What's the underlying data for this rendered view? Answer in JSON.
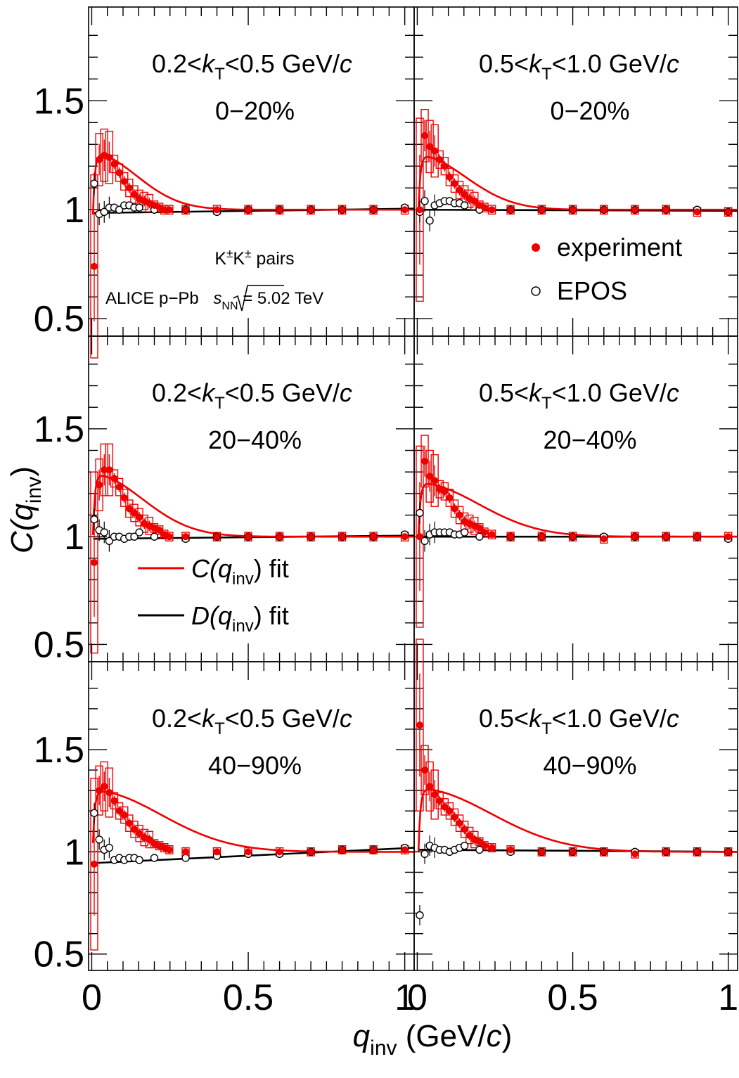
{
  "axes": {
    "y_title_main": "C(q",
    "y_title_sub": "inv",
    "y_title_close": ")",
    "x_title_q": "q",
    "x_title_sub": "inv",
    "x_title_rest": " (GeV/",
    "x_title_c": "c",
    "x_title_close": ")",
    "x_tick_labels": [
      "0",
      "0.5",
      "1"
    ],
    "y_tick_labels": [
      "0.5",
      "1",
      "1.5"
    ]
  },
  "annotations": {
    "pairs": "K±K± pairs",
    "pairs_base": "K",
    "pairs_sup": "±",
    "pairs_tail": " pairs",
    "alice_prefix": "ALICE p−Pb ",
    "alice_s": "s",
    "alice_sub": "NN",
    "alice_suffix": " = 5.02 TeV"
  },
  "legend": {
    "experiment": "experiment",
    "epos": "EPOS",
    "c_fit_pre": "C(q",
    "c_fit_sub": "inv",
    "c_fit_post": ") fit",
    "d_fit_pre": "D(q",
    "d_fit_sub": "inv",
    "d_fit_post": ") fit"
  },
  "colors": {
    "experiment": "#ee0000",
    "epos": "#000000",
    "c_fit": "#ee0000",
    "d_fit": "#000000"
  },
  "chart_data": {
    "type": "scatter",
    "layout": "3 rows x 2 columns, shared axes",
    "xlim": [
      -0.01,
      1.03
    ],
    "ylim": [
      0.42,
      1.93
    ],
    "x_ticks": [
      0,
      0.5,
      1
    ],
    "y_ticks": [
      0.5,
      1,
      1.5
    ],
    "panels": [
      {
        "kt_label": {
          "pre": "0.2<",
          "k": "k",
          "sub": "T",
          "post": "<0.5 GeV/",
          "c": "c"
        },
        "centrality": "0−20%",
        "experiment": [
          [
            0.008,
            0.74
          ],
          [
            0.024,
            1.23
          ],
          [
            0.04,
            1.25
          ],
          [
            0.056,
            1.24
          ],
          [
            0.072,
            1.21
          ],
          [
            0.088,
            1.17
          ],
          [
            0.104,
            1.13
          ],
          [
            0.12,
            1.1
          ],
          [
            0.136,
            1.07
          ],
          [
            0.152,
            1.05
          ],
          [
            0.168,
            1.04
          ],
          [
            0.184,
            1.03
          ],
          [
            0.2,
            1.02
          ],
          [
            0.216,
            1.01
          ],
          [
            0.232,
            1.0
          ],
          [
            0.248,
            1.0
          ],
          [
            0.3,
            1.0
          ],
          [
            0.4,
            1.0
          ],
          [
            0.5,
            1.0
          ],
          [
            0.6,
            1.0
          ],
          [
            0.7,
            1.0
          ],
          [
            0.8,
            1.0
          ],
          [
            0.9,
            1.0
          ],
          [
            1.0,
            1.0
          ]
        ],
        "epos": [
          [
            0.008,
            1.12
          ],
          [
            0.024,
            0.98
          ],
          [
            0.04,
            0.99
          ],
          [
            0.056,
            1.01
          ],
          [
            0.072,
            1.01
          ],
          [
            0.088,
            1.0
          ],
          [
            0.104,
            1.02
          ],
          [
            0.12,
            1.02
          ],
          [
            0.136,
            1.01
          ],
          [
            0.152,
            1.01
          ],
          [
            0.2,
            1.0
          ],
          [
            0.3,
            1.0
          ],
          [
            0.4,
            0.99
          ],
          [
            0.5,
            1.0
          ],
          [
            0.6,
            1.0
          ],
          [
            0.7,
            1.0
          ],
          [
            0.8,
            1.0
          ],
          [
            0.9,
            1.0
          ],
          [
            1.0,
            1.01
          ]
        ],
        "c_fit_lambda": 0.26,
        "c_fit_r": 5.0,
        "c_fit_fsi": 0.55,
        "d_fit": [
          0.985,
          1.005
        ]
      },
      {
        "kt_label": {
          "pre": "0.5<",
          "k": "k",
          "sub": "T",
          "post": "<1.0 GeV/",
          "c": "c"
        },
        "centrality": "0−20%",
        "experiment": [
          [
            0.008,
            1.0
          ],
          [
            0.024,
            1.34
          ],
          [
            0.04,
            1.29
          ],
          [
            0.056,
            1.27
          ],
          [
            0.072,
            1.23
          ],
          [
            0.088,
            1.2
          ],
          [
            0.104,
            1.15
          ],
          [
            0.12,
            1.12
          ],
          [
            0.136,
            1.09
          ],
          [
            0.152,
            1.07
          ],
          [
            0.168,
            1.05
          ],
          [
            0.184,
            1.04
          ],
          [
            0.2,
            1.02
          ],
          [
            0.216,
            1.01
          ],
          [
            0.24,
            1.0
          ],
          [
            0.3,
            1.0
          ],
          [
            0.4,
            1.0
          ],
          [
            0.5,
            1.0
          ],
          [
            0.6,
            1.0
          ],
          [
            0.7,
            1.0
          ],
          [
            0.8,
            1.0
          ],
          [
            0.9,
            0.99
          ],
          [
            1.0,
            0.99
          ]
        ],
        "epos": [
          [
            0.008,
            0.99
          ],
          [
            0.024,
            1.04
          ],
          [
            0.04,
            0.95
          ],
          [
            0.056,
            1.02
          ],
          [
            0.072,
            1.03
          ],
          [
            0.088,
            1.04
          ],
          [
            0.104,
            1.04
          ],
          [
            0.12,
            1.03
          ],
          [
            0.136,
            1.03
          ],
          [
            0.152,
            1.02
          ],
          [
            0.2,
            1.0
          ],
          [
            0.3,
            1.0
          ],
          [
            0.4,
            1.0
          ],
          [
            0.5,
            1.0
          ],
          [
            0.6,
            1.0
          ],
          [
            0.7,
            1.0
          ],
          [
            0.8,
            1.0
          ],
          [
            0.9,
            1.0
          ],
          [
            1.0,
            0.99
          ]
        ],
        "c_fit_lambda": 0.25,
        "c_fit_r": 4.6,
        "c_fit_fsi": 0.5,
        "d_fit": [
          1.0,
          0.995
        ]
      },
      {
        "kt_label": {
          "pre": "0.2<",
          "k": "k",
          "sub": "T",
          "post": "<0.5 GeV/",
          "c": "c"
        },
        "centrality": "20−40%",
        "experiment": [
          [
            0.008,
            0.88
          ],
          [
            0.024,
            1.24
          ],
          [
            0.04,
            1.31
          ],
          [
            0.056,
            1.31
          ],
          [
            0.072,
            1.27
          ],
          [
            0.088,
            1.23
          ],
          [
            0.104,
            1.18
          ],
          [
            0.12,
            1.13
          ],
          [
            0.136,
            1.11
          ],
          [
            0.152,
            1.09
          ],
          [
            0.168,
            1.06
          ],
          [
            0.184,
            1.05
          ],
          [
            0.2,
            1.04
          ],
          [
            0.216,
            1.03
          ],
          [
            0.232,
            1.01
          ],
          [
            0.248,
            1.0
          ],
          [
            0.3,
            1.0
          ],
          [
            0.4,
            1.0
          ],
          [
            0.5,
            1.0
          ],
          [
            0.6,
            1.0
          ],
          [
            0.7,
            1.0
          ],
          [
            0.8,
            1.0
          ],
          [
            0.9,
            1.0
          ],
          [
            1.0,
            1.0
          ]
        ],
        "epos": [
          [
            0.008,
            1.08
          ],
          [
            0.024,
            1.03
          ],
          [
            0.04,
            1.02
          ],
          [
            0.056,
            0.98
          ],
          [
            0.072,
            1.0
          ],
          [
            0.088,
            1.0
          ],
          [
            0.104,
            0.99
          ],
          [
            0.12,
            1.0
          ],
          [
            0.136,
            1.0
          ],
          [
            0.152,
            1.02
          ],
          [
            0.2,
            1.0
          ],
          [
            0.3,
            0.99
          ],
          [
            0.4,
            1.0
          ],
          [
            0.5,
            1.0
          ],
          [
            0.6,
            1.0
          ],
          [
            0.7,
            1.0
          ],
          [
            0.8,
            1.0
          ],
          [
            0.9,
            1.0
          ],
          [
            1.0,
            1.01
          ]
        ],
        "c_fit_lambda": 0.29,
        "c_fit_r": 4.4,
        "c_fit_fsi": 0.55,
        "d_fit": [
          0.99,
          1.005
        ]
      },
      {
        "kt_label": {
          "pre": "0.5<",
          "k": "k",
          "sub": "T",
          "post": "<1.0 GeV/",
          "c": "c"
        },
        "centrality": "20−40%",
        "experiment": [
          [
            0.008,
            1.0
          ],
          [
            0.024,
            1.35
          ],
          [
            0.04,
            1.28
          ],
          [
            0.056,
            1.26
          ],
          [
            0.072,
            1.22
          ],
          [
            0.088,
            1.21
          ],
          [
            0.104,
            1.18
          ],
          [
            0.12,
            1.13
          ],
          [
            0.136,
            1.1
          ],
          [
            0.152,
            1.07
          ],
          [
            0.168,
            1.06
          ],
          [
            0.184,
            1.05
          ],
          [
            0.2,
            1.04
          ],
          [
            0.216,
            1.02
          ],
          [
            0.24,
            1.01
          ],
          [
            0.3,
            1.0
          ],
          [
            0.4,
            1.0
          ],
          [
            0.5,
            1.0
          ],
          [
            0.6,
            0.99
          ],
          [
            0.7,
            1.0
          ],
          [
            0.8,
            1.0
          ],
          [
            0.9,
            1.0
          ],
          [
            1.0,
            1.0
          ]
        ],
        "epos": [
          [
            0.008,
            1.11
          ],
          [
            0.024,
            0.98
          ],
          [
            0.04,
            1.01
          ],
          [
            0.056,
            1.02
          ],
          [
            0.072,
            1.02
          ],
          [
            0.088,
            1.02
          ],
          [
            0.104,
            1.02
          ],
          [
            0.12,
            1.01
          ],
          [
            0.136,
            1.01
          ],
          [
            0.152,
            1.02
          ],
          [
            0.2,
            1.0
          ],
          [
            0.3,
            1.0
          ],
          [
            0.4,
            1.0
          ],
          [
            0.5,
            1.0
          ],
          [
            0.6,
            1.0
          ],
          [
            0.7,
            1.0
          ],
          [
            0.8,
            1.0
          ],
          [
            0.9,
            1.0
          ],
          [
            1.0,
            0.99
          ]
        ],
        "c_fit_lambda": 0.25,
        "c_fit_r": 3.6,
        "c_fit_fsi": 0.48,
        "d_fit": [
          1.0,
          1.0
        ]
      },
      {
        "kt_label": {
          "pre": "0.2<",
          "k": "k",
          "sub": "T",
          "post": "<0.5 GeV/",
          "c": "c"
        },
        "centrality": "40−90%",
        "experiment": [
          [
            0.008,
            0.94
          ],
          [
            0.024,
            1.3
          ],
          [
            0.04,
            1.32
          ],
          [
            0.056,
            1.29
          ],
          [
            0.072,
            1.25
          ],
          [
            0.088,
            1.2
          ],
          [
            0.104,
            1.18
          ],
          [
            0.12,
            1.14
          ],
          [
            0.136,
            1.11
          ],
          [
            0.152,
            1.09
          ],
          [
            0.168,
            1.07
          ],
          [
            0.184,
            1.06
          ],
          [
            0.2,
            1.04
          ],
          [
            0.216,
            1.03
          ],
          [
            0.232,
            1.02
          ],
          [
            0.248,
            1.01
          ],
          [
            0.3,
            1.0
          ],
          [
            0.4,
            1.0
          ],
          [
            0.5,
            1.0
          ],
          [
            0.6,
            1.0
          ],
          [
            0.7,
            1.0
          ],
          [
            0.8,
            1.01
          ],
          [
            0.9,
            1.01
          ],
          [
            1.0,
            1.01
          ]
        ],
        "epos": [
          [
            0.008,
            1.19
          ],
          [
            0.024,
            1.06
          ],
          [
            0.04,
            1.01
          ],
          [
            0.056,
            1.02
          ],
          [
            0.072,
            0.96
          ],
          [
            0.088,
            0.97
          ],
          [
            0.104,
            0.96
          ],
          [
            0.12,
            0.97
          ],
          [
            0.136,
            0.97
          ],
          [
            0.152,
            0.96
          ],
          [
            0.2,
            0.97
          ],
          [
            0.3,
            0.97
          ],
          [
            0.4,
            0.98
          ],
          [
            0.5,
            0.99
          ],
          [
            0.6,
            0.99
          ],
          [
            0.7,
            1.0
          ],
          [
            0.8,
            1.01
          ],
          [
            0.9,
            1.01
          ],
          [
            1.0,
            1.02
          ]
        ],
        "c_fit_lambda": 0.3,
        "c_fit_r": 3.2,
        "c_fit_fsi": 0.5,
        "d_fit": [
          0.945,
          1.02
        ]
      },
      {
        "kt_label": {
          "pre": "0.5<",
          "k": "k",
          "sub": "T",
          "post": "<1.0 GeV/",
          "c": "c"
        },
        "centrality": "40−90%",
        "experiment": [
          [
            0.008,
            1.62
          ],
          [
            0.024,
            1.4
          ],
          [
            0.04,
            1.32
          ],
          [
            0.056,
            1.28
          ],
          [
            0.072,
            1.25
          ],
          [
            0.088,
            1.22
          ],
          [
            0.104,
            1.2
          ],
          [
            0.12,
            1.17
          ],
          [
            0.136,
            1.14
          ],
          [
            0.152,
            1.11
          ],
          [
            0.168,
            1.08
          ],
          [
            0.184,
            1.06
          ],
          [
            0.2,
            1.05
          ],
          [
            0.216,
            1.03
          ],
          [
            0.24,
            1.02
          ],
          [
            0.3,
            1.01
          ],
          [
            0.4,
            1.0
          ],
          [
            0.5,
            1.0
          ],
          [
            0.6,
            1.0
          ],
          [
            0.7,
            0.99
          ],
          [
            0.8,
            1.0
          ],
          [
            0.9,
            1.0
          ],
          [
            1.0,
            1.0
          ]
        ],
        "epos": [
          [
            0.008,
            0.69
          ],
          [
            0.024,
            0.99
          ],
          [
            0.04,
            1.03
          ],
          [
            0.056,
            1.02
          ],
          [
            0.072,
            1.01
          ],
          [
            0.088,
            1.01
          ],
          [
            0.104,
            1.0
          ],
          [
            0.12,
            1.01
          ],
          [
            0.136,
            1.02
          ],
          [
            0.152,
            1.03
          ],
          [
            0.2,
            1.01
          ],
          [
            0.3,
            1.0
          ],
          [
            0.4,
            1.0
          ],
          [
            0.5,
            1.0
          ],
          [
            0.6,
            1.0
          ],
          [
            0.7,
            1.0
          ],
          [
            0.8,
            1.0
          ],
          [
            0.9,
            1.0
          ],
          [
            1.0,
            1.0
          ]
        ],
        "c_fit_lambda": 0.31,
        "c_fit_r": 3.0,
        "c_fit_fsi": 0.6,
        "d_fit": [
          1.01,
          1.0
        ]
      }
    ]
  }
}
